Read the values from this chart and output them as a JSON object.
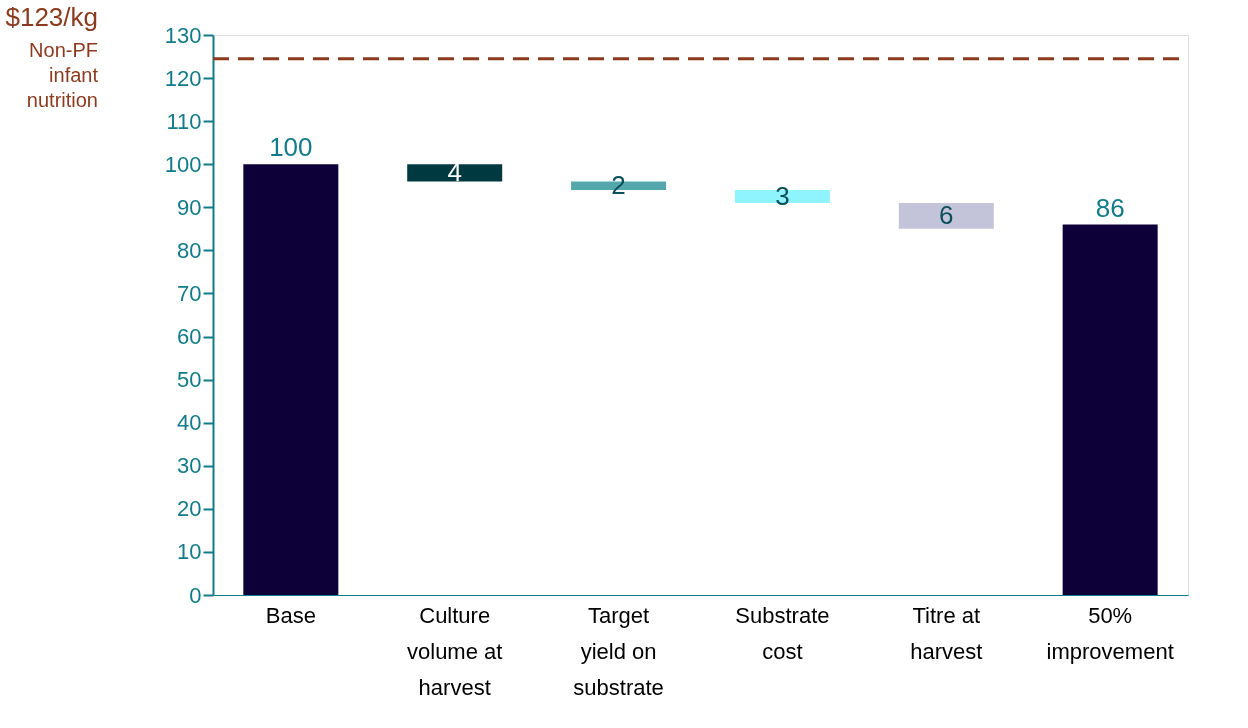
{
  "chart_data": {
    "type": "bar",
    "categories": [
      "Base",
      "Culture volume at harvest",
      "Target yield on substrate",
      "Substrate cost",
      "Titre at harvest",
      "50% improvement"
    ],
    "values": [
      100,
      4,
      2,
      3,
      6,
      86
    ],
    "base": [
      0,
      96,
      94,
      91,
      85,
      0
    ],
    "colors": [
      "#0d0039",
      "#003a40",
      "#55a7ae",
      "#8ff4fd",
      "#c3c3da",
      "#0d0039"
    ],
    "value_labels": [
      "100",
      "4",
      "2",
      "3",
      "6",
      "86"
    ],
    "ylim": [
      0,
      130
    ],
    "yticks": [
      0,
      10,
      20,
      30,
      40,
      50,
      60,
      70,
      80,
      90,
      100,
      110,
      120,
      130
    ],
    "grid": false,
    "ref_lines": [
      {
        "axis": "y",
        "value": 124.5,
        "label": "$123/kg",
        "color": "#8b3a1e",
        "line_style": "dashed"
      }
    ],
    "annotations": [
      "Non-PF infant nutrition"
    ]
  }
}
